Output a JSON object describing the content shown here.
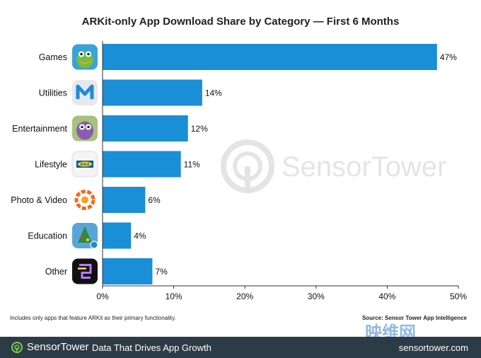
{
  "chart_data": {
    "type": "bar",
    "orientation": "horizontal",
    "title": "ARKit-only App Download Share by Category — First 6 Months",
    "categories": [
      "Games",
      "Utilities",
      "Entertainment",
      "Lifestyle",
      "Photo & Video",
      "Education",
      "Other"
    ],
    "values": [
      47,
      14,
      12,
      11,
      6,
      4,
      7
    ],
    "value_labels": [
      "47%",
      "14%",
      "12%",
      "11%",
      "6%",
      "4%",
      "7%"
    ],
    "xlim": [
      0,
      50
    ],
    "x_ticks": [
      0,
      10,
      20,
      30,
      40,
      50
    ],
    "x_tick_labels": [
      "0%",
      "10%",
      "20%",
      "30%",
      "40%",
      "50%"
    ],
    "grid": false,
    "bar_color": "#1a8ed6",
    "app_icons": [
      "dragon-app-icon",
      "m-letter-app-icon",
      "purple-creature-app-icon",
      "ikea-app-icon",
      "orange-ring-app-icon",
      "christmas-tree-app-icon",
      "black-glyph-app-icon"
    ]
  },
  "footnote": "Includes only apps that feature ARKit as their primary functionality.",
  "source": "Source: Sensor Tower App Intelligence",
  "watermark": "SensorTower",
  "footer": {
    "brand": "SensorTower",
    "tagline": "Data That Drives App Growth",
    "site": "sensortower.com",
    "background": "#2d3b46",
    "accent": "#7ccc4e"
  },
  "corner_watermark": "映维网"
}
